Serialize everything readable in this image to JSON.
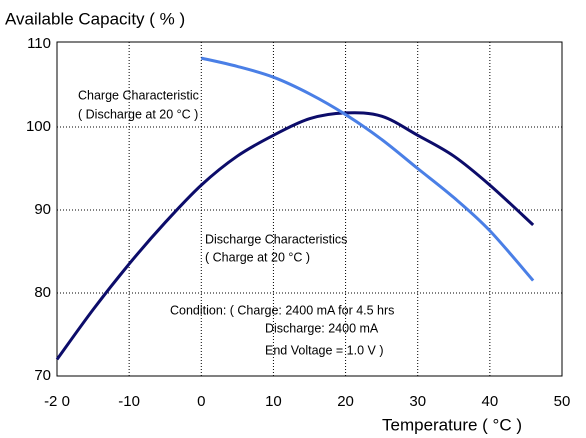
{
  "chart_data": {
    "type": "line",
    "y_label": "Available Capacity ( % )",
    "x_label": "Temperature ( °C )",
    "xlim": [
      -20,
      50
    ],
    "ylim": [
      70,
      110
    ],
    "xticks": [
      {
        "value": -20,
        "label": "-2 0"
      },
      -10,
      0,
      10,
      20,
      30,
      40,
      50
    ],
    "yticks": [
      70,
      80,
      90,
      100,
      110
    ],
    "grid": true,
    "series": [
      {
        "color": "#0c0c6a",
        "x": [
          -20,
          -15,
          -10,
          -5,
          0,
          5,
          10,
          15,
          20,
          25,
          30,
          35,
          40,
          46
        ],
        "values": [
          72,
          78,
          83.5,
          88.5,
          93,
          96.5,
          99,
          101,
          101.7,
          101.3,
          99,
          96.5,
          93,
          88.2
        ]
      },
      {
        "color": "#4a7fe6",
        "x": [
          0,
          5,
          10,
          15,
          20,
          25,
          30,
          35,
          40,
          46
        ],
        "values": [
          108.3,
          107.3,
          106,
          104,
          101.5,
          98.5,
          95,
          91.5,
          87.5,
          81.5
        ]
      }
    ],
    "annotations": [
      {
        "lines": [
          "Charge  Characteristic",
          "( Discharge  at  20 °C )"
        ]
      },
      {
        "lines": [
          "Discharge Characteristics",
          "( Charge at 20 °C )"
        ]
      },
      {
        "lines": [
          "Condition: ( Charge: 2400 mA  for  4.5 hrs",
          "Discharge: 2400 mA",
          "End  Voltage = 1.0 V )"
        ]
      }
    ]
  }
}
